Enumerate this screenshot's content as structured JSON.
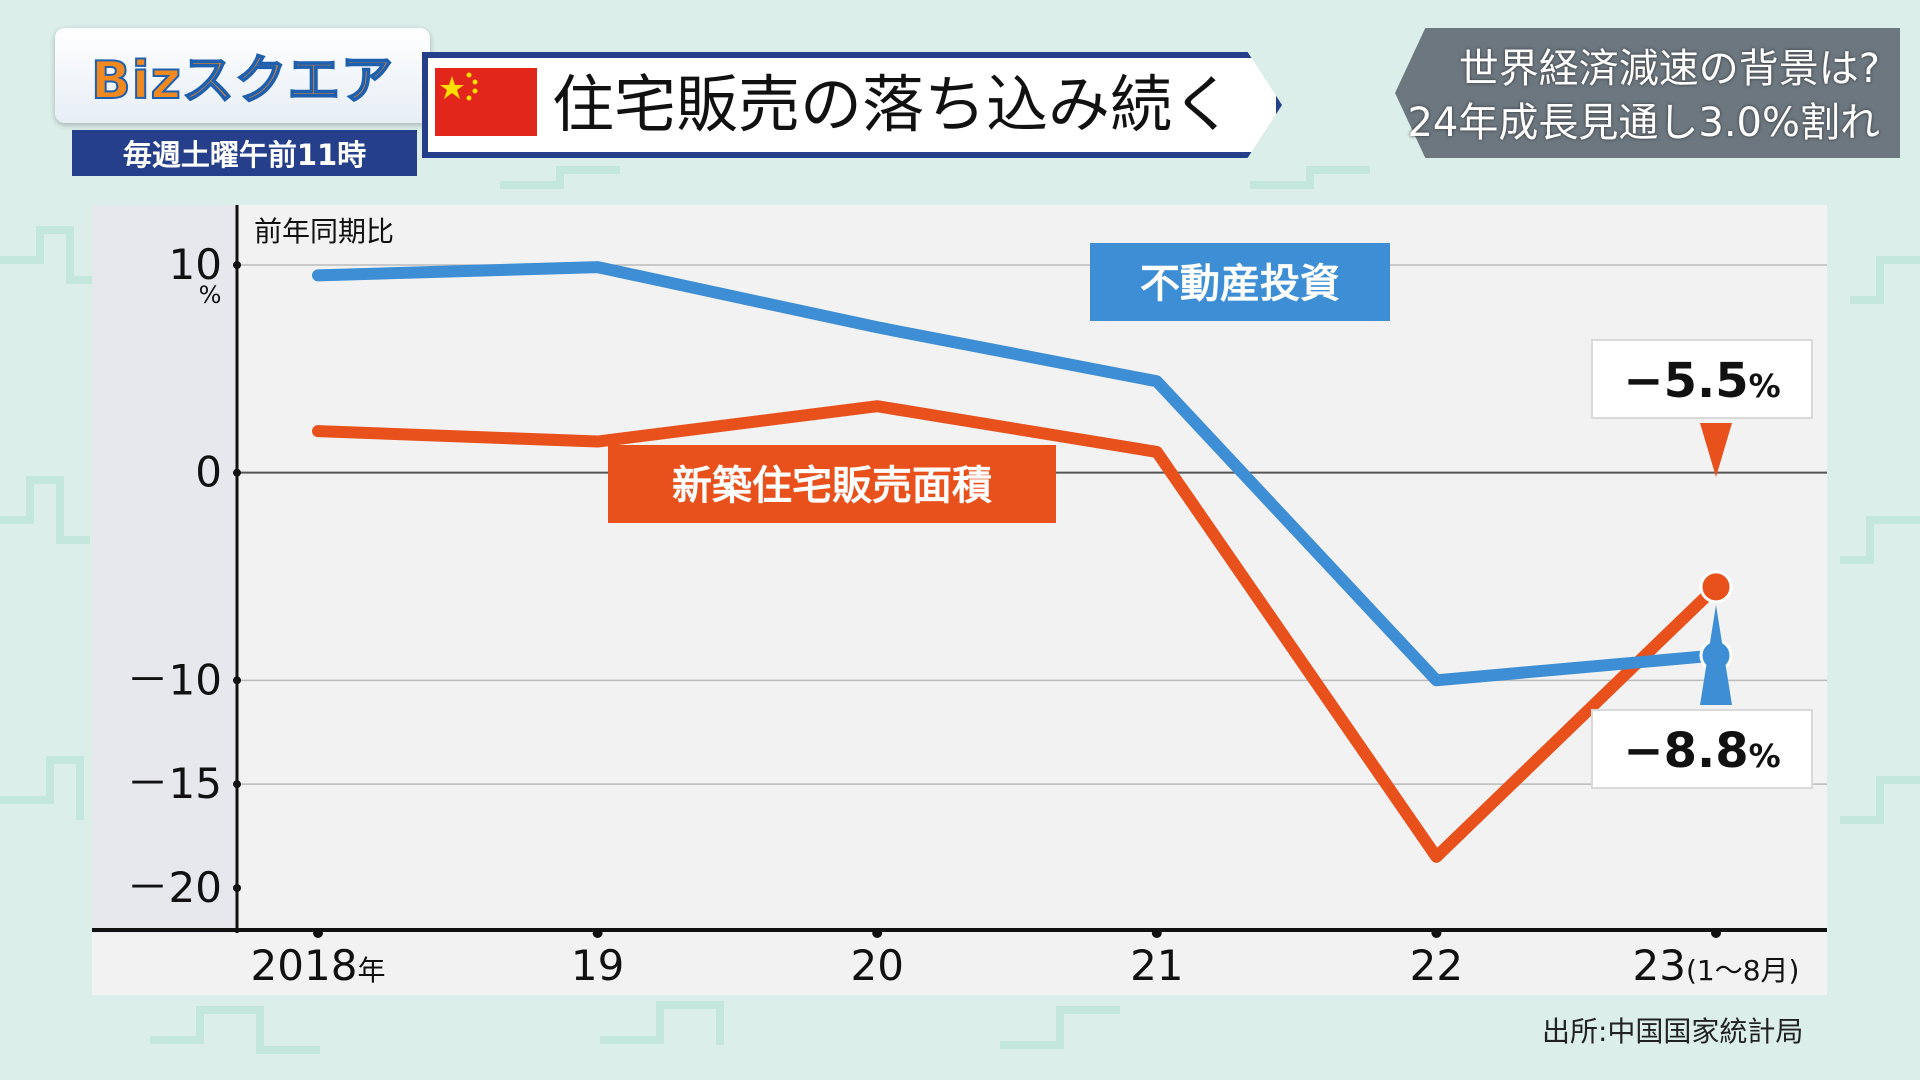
{
  "logo": {
    "text": "Bizスクエア",
    "schedule": "毎週土曜午前11時"
  },
  "title": "住宅販売の落ち込み続く",
  "banner": {
    "line1": "世界経済減速の背景は?",
    "line2": "24年成長見通し3.0%割れ"
  },
  "source": "出所:中国国家統計局",
  "colors": {
    "blue_series": "#3d8ed4",
    "orange_series": "#e8501c",
    "navy": "#263f8a"
  },
  "chart_data": {
    "type": "line",
    "y_header": "前年同期比",
    "y_unit": "%",
    "ylim": [
      -20,
      10
    ],
    "yticks": [
      {
        "value": 10,
        "label": "10"
      },
      {
        "value": 0,
        "label": "0"
      },
      {
        "value": -10,
        "label": "－10"
      },
      {
        "value": -15,
        "label": "－15"
      },
      {
        "value": -20,
        "label": "－20"
      }
    ],
    "categories": [
      {
        "num": "2018",
        "suffix": "年"
      },
      {
        "num": "19",
        "suffix": ""
      },
      {
        "num": "20",
        "suffix": ""
      },
      {
        "num": "21",
        "suffix": ""
      },
      {
        "num": "22",
        "suffix": ""
      },
      {
        "num": "23",
        "suffix": "(1～8月)"
      }
    ],
    "grid": true,
    "series": [
      {
        "name": "不動産投資",
        "color": "#3d8ed4",
        "values": [
          9.5,
          9.9,
          7.0,
          4.4,
          -10.0,
          -8.8
        ],
        "end_label": "−8.8",
        "end_unit": "%"
      },
      {
        "name": "新築住宅販売面積",
        "color": "#e8501c",
        "values": [
          2.0,
          1.5,
          3.2,
          1.0,
          -18.5,
          -5.5
        ],
        "end_label": "−5.5",
        "end_unit": "%"
      }
    ]
  }
}
